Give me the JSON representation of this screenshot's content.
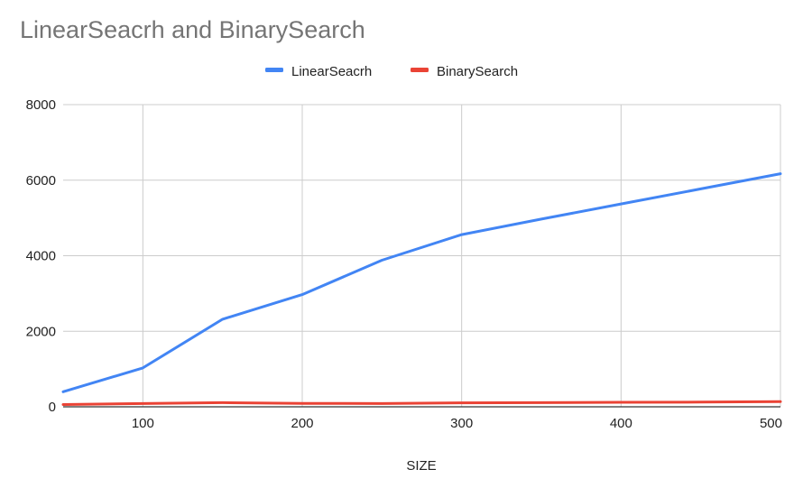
{
  "chart_data": {
    "type": "line",
    "title": "LinearSeacrh and BinarySearch",
    "xlabel": "SIZE",
    "ylabel": "",
    "xlim": [
      50,
      500
    ],
    "ylim": [
      0,
      8000
    ],
    "x_ticks": [
      100,
      200,
      300,
      400,
      500
    ],
    "y_ticks": [
      0,
      2000,
      4000,
      6000,
      8000
    ],
    "grid": true,
    "legend_position": "top-center",
    "x": [
      50,
      100,
      150,
      200,
      250,
      300,
      350,
      400,
      450,
      500
    ],
    "series": [
      {
        "name": "LinearSeacrh",
        "color": "#4285f4",
        "values": [
          400,
          1030,
          2320,
          2970,
          3880,
          4560,
          4970,
          5370,
          5770,
          6170
        ]
      },
      {
        "name": "BinarySearch",
        "color": "#ea4335",
        "values": [
          60,
          85,
          110,
          90,
          85,
          105,
          110,
          120,
          125,
          135
        ]
      }
    ]
  }
}
